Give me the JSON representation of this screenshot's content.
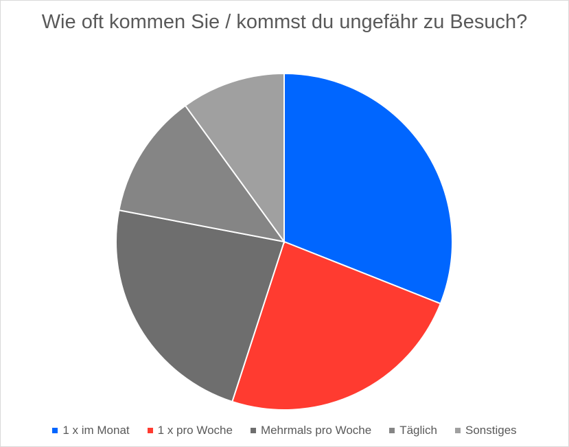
{
  "chart_data": {
    "type": "pie",
    "title": "Wie oft kommen Sie / kommst du ungefähr zu Besuch?",
    "categories": [
      "1 x im Monat",
      "1 x pro Woche",
      "Mehrmals pro Woche",
      "Täglich",
      "Sonstiges"
    ],
    "values": [
      31,
      24,
      23,
      12,
      10
    ],
    "colors": [
      "#0066ff",
      "#ff3b30",
      "#6e6e6e",
      "#858585",
      "#a0a0a0"
    ],
    "legend_position": "bottom",
    "start_angle": "12 o'clock",
    "direction": "clockwise"
  }
}
